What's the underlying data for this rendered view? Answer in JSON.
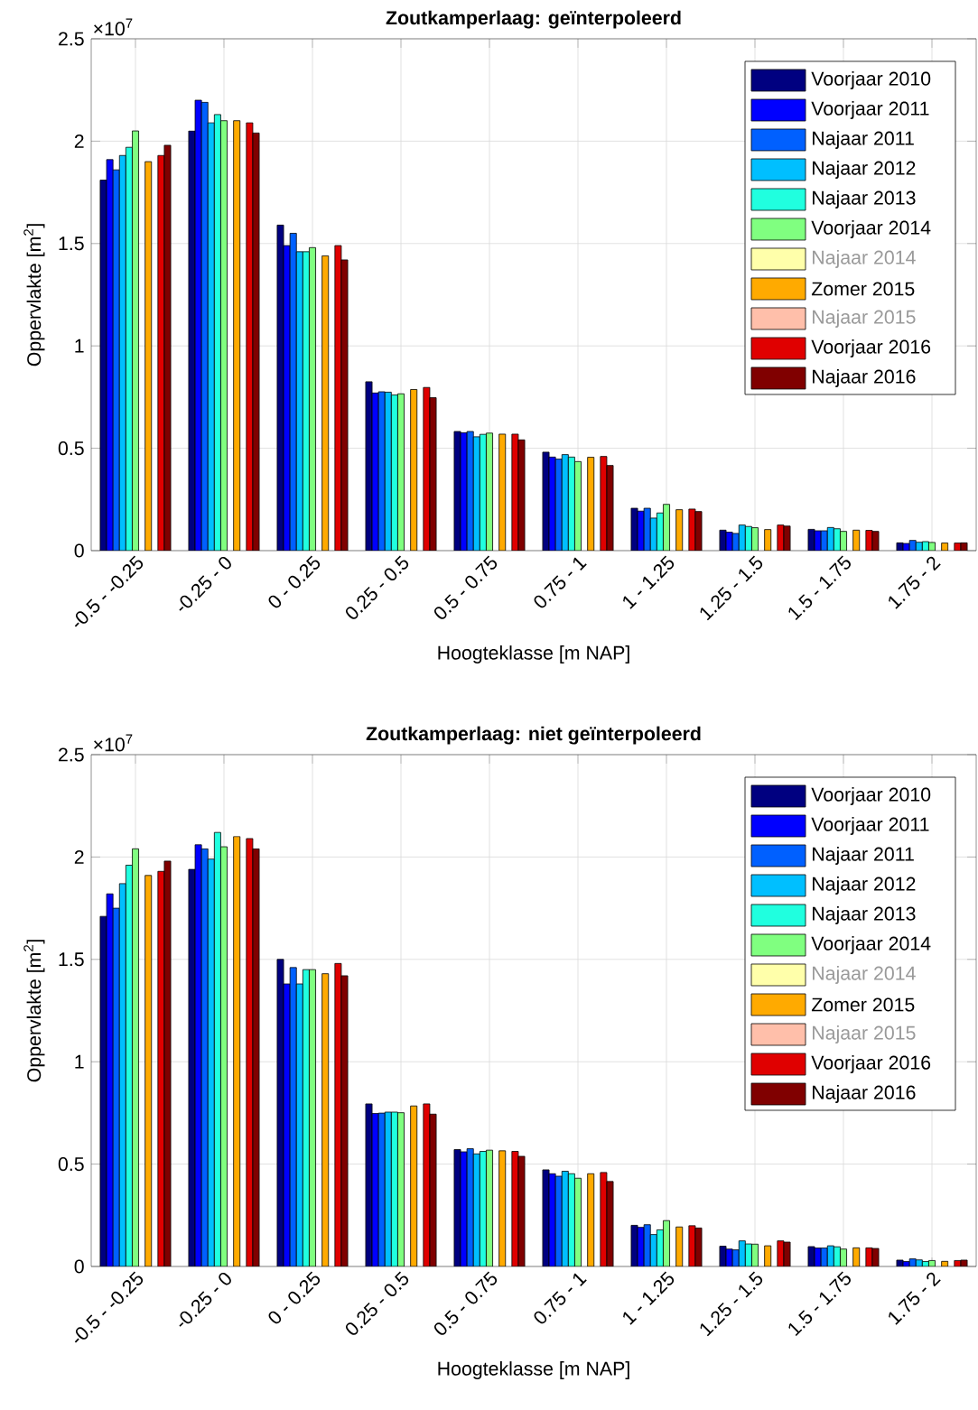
{
  "chart_data": [
    {
      "type": "bar",
      "title": "Zoutkamperlaag: geïnterpoleerd",
      "xlabel": "Hoogteklasse [m NAP]",
      "ylabel": "Oppervlakte [m$^{2}$]",
      "annotations": [
        "×10$^{7}$"
      ],
      "grid": true,
      "legend": "top right",
      "ylim": [
        0,
        2.5
      ],
      "yticks": [
        0,
        0.5,
        1,
        1.5,
        2,
        2.5
      ],
      "categories": [
        "-0.5 - -0.25",
        "-0.25 - 0",
        "0 - 0.25",
        "0.25 - 0.5",
        "0.5 - 0.75",
        "0.75 - 1",
        "1 - 1.25",
        "1.25 - 1.5",
        "1.5 - 1.75",
        "1.75 - 2"
      ],
      "series": [
        {
          "name": "Voorjaar 2010",
          "color": "#000080",
          "values": [
            1.81,
            2.05,
            1.59,
            0.825,
            0.582,
            0.481,
            0.207,
            0.1,
            0.104,
            0.038
          ]
        },
        {
          "name": "Voorjaar 2011",
          "color": "#0000ff",
          "values": [
            1.91,
            2.2,
            1.49,
            0.77,
            0.576,
            0.457,
            0.193,
            0.09,
            0.097,
            0.035
          ]
        },
        {
          "name": "Najaar 2011",
          "color": "#0060ff",
          "values": [
            1.86,
            2.19,
            1.55,
            0.776,
            0.582,
            0.447,
            0.207,
            0.084,
            0.097,
            0.05
          ]
        },
        {
          "name": "Najaar 2012",
          "color": "#00bfff",
          "values": [
            1.93,
            2.09,
            1.46,
            0.774,
            0.556,
            0.469,
            0.159,
            0.125,
            0.113,
            0.041
          ]
        },
        {
          "name": "Najaar 2013",
          "color": "#20ffdf",
          "values": [
            1.97,
            2.13,
            1.46,
            0.76,
            0.568,
            0.457,
            0.184,
            0.118,
            0.107,
            0.044
          ]
        },
        {
          "name": "Voorjaar 2014",
          "color": "#80ff80",
          "values": [
            2.05,
            2.1,
            1.48,
            0.766,
            0.574,
            0.435,
            0.226,
            0.112,
            0.094,
            0.04
          ]
        },
        {
          "name": "Najaar 2014",
          "color": "#ffffaa",
          "values": [
            null,
            null,
            null,
            null,
            null,
            null,
            null,
            null,
            null,
            null
          ]
        },
        {
          "name": "Zomer 2015",
          "color": "#ffaa00",
          "values": [
            1.9,
            2.1,
            1.44,
            0.787,
            0.569,
            0.456,
            0.2,
            0.103,
            0.1,
            0.037
          ]
        },
        {
          "name": "Najaar 2015",
          "color": "#ffbfaa",
          "values": [
            null,
            null,
            null,
            null,
            null,
            null,
            null,
            null,
            null,
            null
          ]
        },
        {
          "name": "Voorjaar 2016",
          "color": "#e00000",
          "values": [
            1.93,
            2.09,
            1.49,
            0.797,
            0.569,
            0.46,
            0.203,
            0.125,
            0.099,
            0.037
          ]
        },
        {
          "name": "Najaar 2016",
          "color": "#800000",
          "values": [
            1.98,
            2.04,
            1.42,
            0.747,
            0.541,
            0.416,
            0.191,
            0.12,
            0.094,
            0.038
          ]
        }
      ]
    },
    {
      "type": "bar",
      "title": "Zoutkamperlaag: niet geïnterpoleerd",
      "xlabel": "Hoogteklasse [m NAP]",
      "ylabel": "Oppervlakte [m$^{2}$]",
      "annotations": [
        "×10$^{7}$"
      ],
      "grid": true,
      "legend": "top right",
      "ylim": [
        0,
        2.5
      ],
      "yticks": [
        0,
        0.5,
        1,
        1.5,
        2,
        2.5
      ],
      "categories": [
        "-0.5 - -0.25",
        "-0.25 - 0",
        "0 - 0.25",
        "0.25 - 0.5",
        "0.5 - 0.75",
        "0.75 - 1",
        "1 - 1.25",
        "1.25 - 1.5",
        "1.5 - 1.75",
        "1.75 - 2"
      ],
      "series": [
        {
          "name": "Voorjaar 2010",
          "color": "#000080",
          "values": [
            1.71,
            1.94,
            1.5,
            0.794,
            0.571,
            0.472,
            0.201,
            0.099,
            0.097,
            0.031
          ]
        },
        {
          "name": "Voorjaar 2011",
          "color": "#0000ff",
          "values": [
            1.82,
            2.06,
            1.38,
            0.747,
            0.56,
            0.453,
            0.191,
            0.085,
            0.09,
            0.024
          ]
        },
        {
          "name": "Najaar 2011",
          "color": "#0060ff",
          "values": [
            1.75,
            2.04,
            1.46,
            0.749,
            0.575,
            0.441,
            0.204,
            0.081,
            0.09,
            0.037
          ]
        },
        {
          "name": "Najaar 2012",
          "color": "#00bfff",
          "values": [
            1.87,
            1.99,
            1.38,
            0.754,
            0.55,
            0.465,
            0.156,
            0.125,
            0.101,
            0.032
          ]
        },
        {
          "name": "Najaar 2013",
          "color": "#20ffdf",
          "values": [
            1.96,
            2.12,
            1.45,
            0.754,
            0.562,
            0.453,
            0.179,
            0.11,
            0.096,
            0.024
          ]
        },
        {
          "name": "Voorjaar 2014",
          "color": "#80ff80",
          "values": [
            2.04,
            2.05,
            1.45,
            0.751,
            0.568,
            0.431,
            0.224,
            0.109,
            0.085,
            0.029
          ]
        },
        {
          "name": "Najaar 2014",
          "color": "#ffffaa",
          "values": [
            null,
            null,
            null,
            null,
            null,
            null,
            null,
            null,
            null,
            null
          ]
        },
        {
          "name": "Zomer 2015",
          "color": "#ffaa00",
          "values": [
            1.91,
            2.1,
            1.43,
            0.784,
            0.565,
            0.453,
            0.193,
            0.101,
            0.091,
            0.025
          ]
        },
        {
          "name": "Najaar 2015",
          "color": "#ffbfaa",
          "values": [
            null,
            null,
            null,
            null,
            null,
            null,
            null,
            null,
            null,
            null
          ]
        },
        {
          "name": "Voorjaar 2016",
          "color": "#e00000",
          "values": [
            1.93,
            2.09,
            1.48,
            0.794,
            0.562,
            0.459,
            0.199,
            0.125,
            0.091,
            0.029
          ]
        },
        {
          "name": "Najaar 2016",
          "color": "#800000",
          "values": [
            1.98,
            2.04,
            1.42,
            0.744,
            0.538,
            0.415,
            0.188,
            0.119,
            0.088,
            0.031
          ]
        }
      ]
    }
  ]
}
